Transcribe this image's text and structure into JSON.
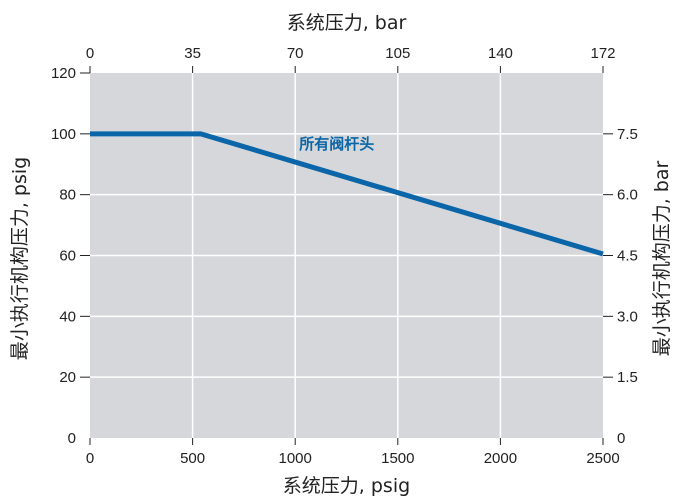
{
  "chart_data": {
    "type": "line",
    "title": "",
    "xlabel": "系统压力, psig",
    "ylabel": "最小执行机构压力, psig",
    "x2label": "系统压力, bar",
    "y2label": "最小执行机构压力, bar",
    "xlim": [
      0,
      2500
    ],
    "ylim": [
      0,
      120
    ],
    "x_ticks": [
      0,
      500,
      1000,
      1500,
      2000,
      2500
    ],
    "y_ticks": [
      0,
      20,
      40,
      60,
      80,
      100,
      120
    ],
    "x2_ticks": [
      {
        "label": "0",
        "at": 0
      },
      {
        "label": "35",
        "at": 500
      },
      {
        "label": "70",
        "at": 1000
      },
      {
        "label": "105",
        "at": 1500
      },
      {
        "label": "140",
        "at": 2000
      },
      {
        "label": "172",
        "at": 2500
      }
    ],
    "y2_ticks": [
      {
        "label": "0",
        "at": 0
      },
      {
        "label": "1.5",
        "at": 20
      },
      {
        "label": "3.0",
        "at": 40
      },
      {
        "label": "4.5",
        "at": 60
      },
      {
        "label": "6.0",
        "at": 80
      },
      {
        "label": "7.5",
        "at": 100
      }
    ],
    "grid": true,
    "series": [
      {
        "name": "所有阀杆头",
        "color": "#0a66a8",
        "x": [
          0,
          540,
          2500
        ],
        "y": [
          100,
          100,
          60.5
        ]
      }
    ],
    "annotation": {
      "text": "所有阀杆头",
      "x": 1020,
      "y": 95
    },
    "colors": {
      "plot_background": "#d5d7da",
      "grid": "#ffffff",
      "axis": "#222222",
      "line": "#0a66a8"
    }
  }
}
